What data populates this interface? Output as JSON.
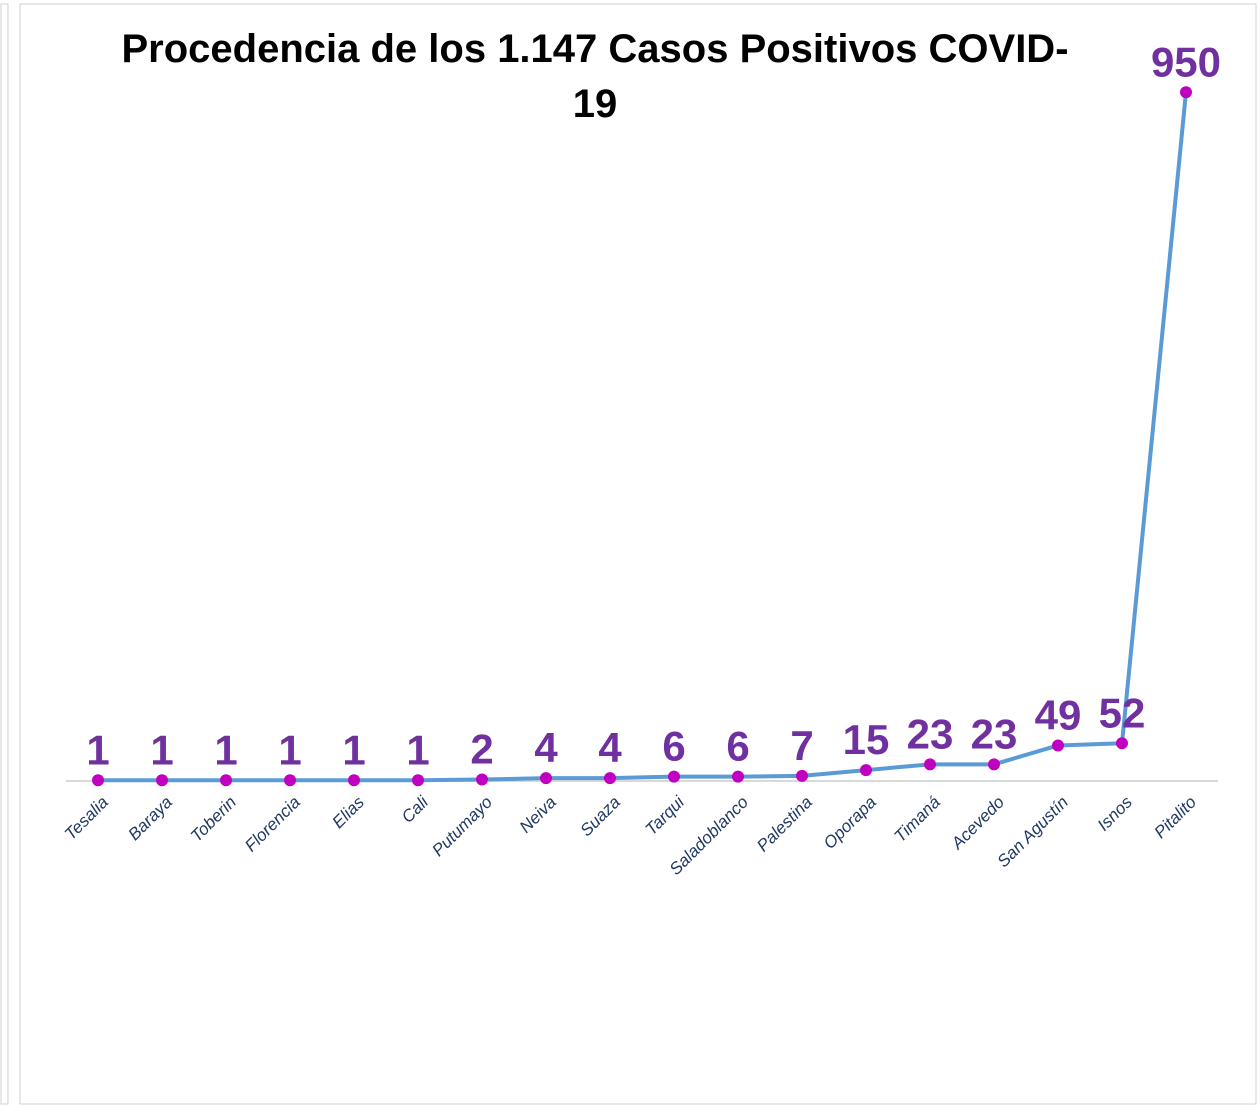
{
  "chart_data": {
    "type": "line",
    "title": "Procedencia de los 1.147 Casos Positivos COVID-19",
    "categories": [
      "Tesalia",
      "Baraya",
      "Toberin",
      "Florencia",
      "Elias",
      "Cali",
      "Putumayo",
      "Neiva",
      "Suaza",
      "Tarqui",
      "Saladoblanco",
      "Palestina",
      "Oporapa",
      "Timaná",
      "Acevedo",
      "San Agustín",
      "Isnos",
      "Pitalito"
    ],
    "series": [
      {
        "name": "Casos",
        "color": "#5b9bd5",
        "marker_color": "#c000c0",
        "values": [
          1,
          1,
          1,
          1,
          1,
          1,
          2,
          4,
          4,
          6,
          6,
          7,
          15,
          23,
          23,
          49,
          52,
          950
        ]
      }
    ],
    "ylim": [
      0,
      1000
    ]
  }
}
